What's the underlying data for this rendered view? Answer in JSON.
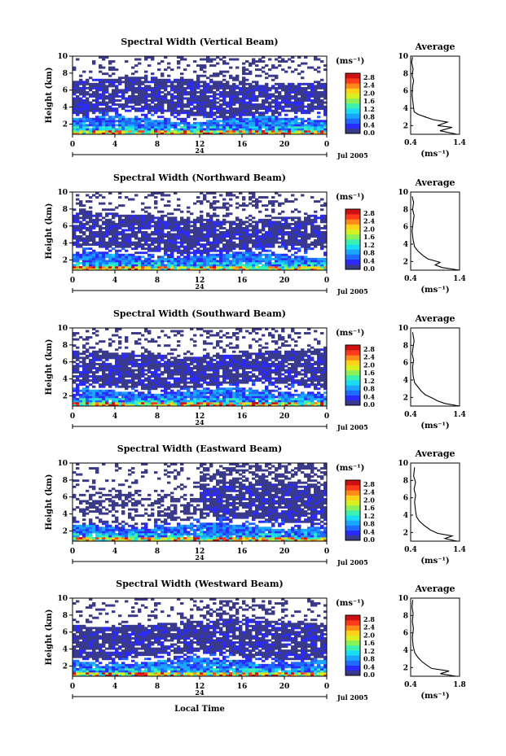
{
  "figure": {
    "x_label": "Local Time",
    "unit_label": "(ms⁻¹)",
    "date_label": "Jul 2005",
    "avg_title": "Average",
    "y_label": "Height (km)",
    "colorbar_ticks": [
      "0.0",
      "0.4",
      "0.8",
      "1.2",
      "1.6",
      "2.0",
      "2.4",
      "2.8"
    ],
    "colormap": [
      "#3a3a8c",
      "#2a2aff",
      "#1f6aff",
      "#1aa6ff",
      "#19dcf0",
      "#3cf0b0",
      "#8cf05a",
      "#d8f020",
      "#ffd21a",
      "#ff8a1a",
      "#ff3a1a",
      "#d01010"
    ]
  },
  "chart_data": [
    {
      "type": "heatmap",
      "title": "Spectral Width (Vertical Beam)",
      "x_ticks": [
        "0",
        "4",
        "8",
        "12",
        "16",
        "20",
        "0"
      ],
      "y_ticks": [
        "2",
        "4",
        "6",
        "8",
        "10"
      ],
      "date_marker": "24",
      "xlim": [
        0,
        24
      ],
      "ylim": [
        0.8,
        10
      ],
      "zlim": [
        0,
        2.8
      ],
      "profile": {
        "title": "Average",
        "x_ticks": [
          "0.4",
          "1.4"
        ],
        "xlim": [
          0.4,
          1.4
        ],
        "y_ticks": [
          "2",
          "4",
          "6",
          "8",
          "10"
        ],
        "ylim": [
          1,
          10
        ],
        "points": [
          [
            1.35,
            1.0
          ],
          [
            1.0,
            1.4
          ],
          [
            1.25,
            1.8
          ],
          [
            0.95,
            2.0
          ],
          [
            1.15,
            2.4
          ],
          [
            0.85,
            2.7
          ],
          [
            0.7,
            3.0
          ],
          [
            0.55,
            3.3
          ],
          [
            0.47,
            3.6
          ],
          [
            0.45,
            4.5
          ],
          [
            0.43,
            5.5
          ],
          [
            0.44,
            6.5
          ],
          [
            0.46,
            7.2
          ],
          [
            0.43,
            7.8
          ],
          [
            0.45,
            8.5
          ],
          [
            0.42,
            9.3
          ],
          [
            0.44,
            9.9
          ]
        ]
      }
    },
    {
      "type": "heatmap",
      "title": "Spectral Width (Northward Beam)",
      "x_ticks": [
        "0",
        "4",
        "8",
        "12",
        "16",
        "20",
        "0"
      ],
      "y_ticks": [
        "2",
        "4",
        "6",
        "8",
        "10"
      ],
      "date_marker": "24",
      "xlim": [
        0,
        24
      ],
      "ylim": [
        0.8,
        10
      ],
      "zlim": [
        0,
        2.8
      ],
      "profile": {
        "title": "Average",
        "x_ticks": [
          "0.4",
          "1.4"
        ],
        "xlim": [
          0.4,
          1.4
        ],
        "y_ticks": [
          "2",
          "4",
          "6",
          "8",
          "10"
        ],
        "ylim": [
          1,
          10
        ],
        "points": [
          [
            1.4,
            1.0
          ],
          [
            1.05,
            1.3
          ],
          [
            0.9,
            1.6
          ],
          [
            1.0,
            1.9
          ],
          [
            0.75,
            2.3
          ],
          [
            0.65,
            2.7
          ],
          [
            0.55,
            3.2
          ],
          [
            0.48,
            3.7
          ],
          [
            0.45,
            4.5
          ],
          [
            0.43,
            5.5
          ],
          [
            0.45,
            6.5
          ],
          [
            0.47,
            7.3
          ],
          [
            0.44,
            8.0
          ],
          [
            0.46,
            8.8
          ],
          [
            0.43,
            9.5
          ]
        ]
      }
    },
    {
      "type": "heatmap",
      "title": "Spectral Width (Southward Beam)",
      "x_ticks": [
        "0",
        "4",
        "8",
        "12",
        "16",
        "20",
        "0"
      ],
      "y_ticks": [
        "2",
        "4",
        "6",
        "8",
        "10"
      ],
      "date_marker": "24",
      "xlim": [
        0,
        24
      ],
      "ylim": [
        0.8,
        10
      ],
      "zlim": [
        0,
        2.8
      ],
      "profile": {
        "title": "Average",
        "x_ticks": [
          "0.4",
          "1.4"
        ],
        "xlim": [
          0.4,
          1.4
        ],
        "y_ticks": [
          "2",
          "4",
          "6",
          "8",
          "10"
        ],
        "ylim": [
          1,
          10
        ],
        "points": [
          [
            1.4,
            1.0
          ],
          [
            1.1,
            1.3
          ],
          [
            0.95,
            1.6
          ],
          [
            0.85,
            1.9
          ],
          [
            0.7,
            2.3
          ],
          [
            0.62,
            2.7
          ],
          [
            0.55,
            3.2
          ],
          [
            0.48,
            3.7
          ],
          [
            0.45,
            4.5
          ],
          [
            0.44,
            5.5
          ],
          [
            0.46,
            6.3
          ],
          [
            0.43,
            7.0
          ],
          [
            0.45,
            7.8
          ],
          [
            0.47,
            8.5
          ],
          [
            0.44,
            9.5
          ]
        ]
      }
    },
    {
      "type": "heatmap",
      "title": "Spectral Width (Eastward Beam)",
      "x_ticks": [
        "0",
        "4",
        "8",
        "12",
        "16",
        "20",
        "0"
      ],
      "y_ticks": [
        "2",
        "4",
        "6",
        "8",
        "10"
      ],
      "date_marker": "24",
      "xlim": [
        0,
        24
      ],
      "ylim": [
        0.8,
        10
      ],
      "zlim": [
        0,
        2.8
      ],
      "profile": {
        "title": "Average",
        "x_ticks": [
          "0.4",
          "1.4"
        ],
        "xlim": [
          0.4,
          1.4
        ],
        "y_ticks": [
          "2",
          "4",
          "6",
          "8",
          "10"
        ],
        "ylim": [
          1,
          10
        ],
        "points": [
          [
            1.35,
            1.0
          ],
          [
            1.1,
            1.3
          ],
          [
            1.25,
            1.6
          ],
          [
            0.95,
            1.9
          ],
          [
            0.8,
            2.3
          ],
          [
            0.68,
            2.8
          ],
          [
            0.58,
            3.3
          ],
          [
            0.52,
            3.8
          ],
          [
            0.5,
            4.5
          ],
          [
            0.48,
            5.5
          ],
          [
            0.5,
            6.3
          ],
          [
            0.47,
            7.0
          ],
          [
            0.5,
            7.8
          ],
          [
            0.46,
            8.5
          ],
          [
            0.48,
            9.5
          ]
        ]
      }
    },
    {
      "type": "heatmap",
      "title": "Spectral Width (Westward Beam)",
      "x_ticks": [
        "0",
        "4",
        "8",
        "12",
        "16",
        "20",
        "0"
      ],
      "y_ticks": [
        "2",
        "4",
        "6",
        "8",
        "10"
      ],
      "date_marker": "24",
      "xlim": [
        0,
        24
      ],
      "ylim": [
        0.8,
        10
      ],
      "zlim": [
        0,
        2.8
      ],
      "profile": {
        "title": "Average",
        "x_ticks": [
          "0.4",
          "1.8"
        ],
        "xlim": [
          0.4,
          1.8
        ],
        "y_ticks": [
          "2",
          "4",
          "6",
          "8",
          "10"
        ],
        "ylim": [
          1,
          10
        ],
        "points": [
          [
            1.7,
            1.0
          ],
          [
            1.25,
            1.3
          ],
          [
            1.5,
            1.6
          ],
          [
            1.0,
            1.9
          ],
          [
            0.85,
            2.3
          ],
          [
            0.72,
            2.7
          ],
          [
            0.6,
            3.2
          ],
          [
            0.52,
            3.7
          ],
          [
            0.47,
            4.5
          ],
          [
            0.45,
            5.5
          ],
          [
            0.48,
            6.5
          ],
          [
            0.45,
            7.3
          ],
          [
            0.47,
            8.2
          ],
          [
            0.44,
            9.0
          ],
          [
            0.46,
            9.8
          ]
        ]
      }
    }
  ]
}
